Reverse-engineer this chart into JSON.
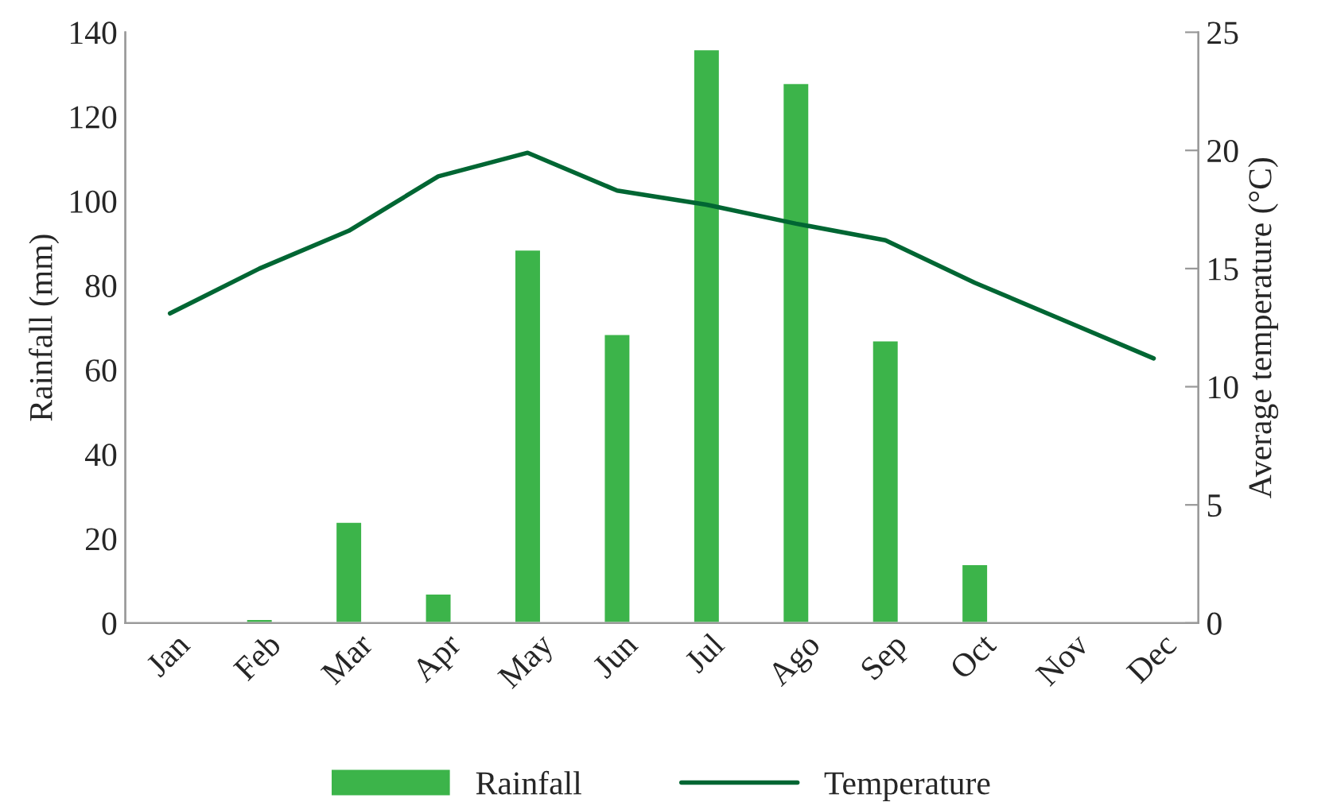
{
  "chart_data": {
    "type": "bar",
    "categories": [
      "Jan",
      "Feb",
      "Mar",
      "Apr",
      "May",
      "Jun",
      "Jul",
      "Ago",
      "Sep",
      "Oct",
      "Nov",
      "Dec"
    ],
    "ylabel": "Rainfall (mm)",
    "y2label": "Average temperature (°C)",
    "series": [
      {
        "name": "Rainfall",
        "color": "#3cb44a",
        "values": [
          null,
          1,
          24,
          7,
          88.5,
          68.5,
          136,
          128,
          67,
          14,
          null,
          null
        ]
      },
      {
        "name": "Temperature",
        "type": "line",
        "axis": "y2",
        "color": "#006633",
        "values": [
          13.1,
          15.0,
          16.6,
          18.9,
          19.9,
          18.3,
          17.7,
          16.9,
          16.2,
          14.4,
          12.8,
          11.2
        ]
      }
    ],
    "ylim": [
      0,
      140
    ],
    "yticks": [
      0,
      20,
      40,
      60,
      80,
      100,
      120,
      140
    ],
    "y2lim": [
      0,
      25
    ],
    "y2ticks": [
      0,
      5,
      10,
      15,
      20,
      25
    ],
    "grid": false,
    "legend": "bottom",
    "marker": "none",
    "line_style": "solid"
  }
}
